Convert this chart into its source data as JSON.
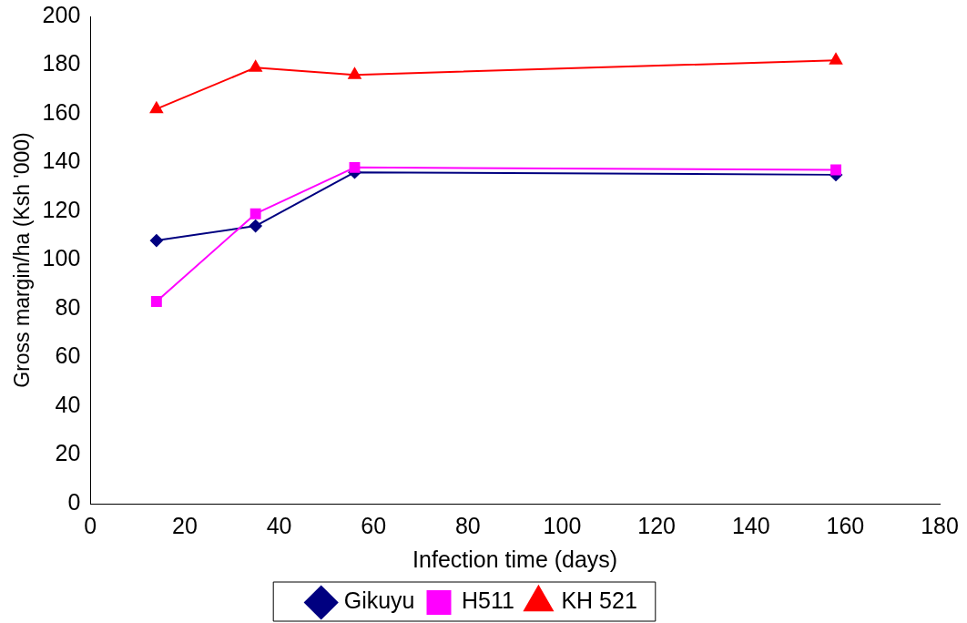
{
  "chart_data": {
    "type": "line",
    "xlabel": "Infection time (days)",
    "ylabel": "Gross margin/ha (Ksh '000)",
    "xlim": [
      0,
      180
    ],
    "xticks": [
      0,
      20,
      40,
      60,
      80,
      100,
      120,
      140,
      160,
      180
    ],
    "ylim": [
      0,
      200
    ],
    "yticks": [
      0,
      20,
      40,
      60,
      80,
      100,
      120,
      140,
      160,
      180,
      200
    ],
    "x": [
      14,
      35,
      56,
      158
    ],
    "grid": false,
    "legend": "bottom",
    "series": [
      {
        "name": "Gikuyu",
        "color": "#000080",
        "marker": "diamond",
        "values": [
          108,
          114,
          136,
          135
        ]
      },
      {
        "name": "H511",
        "color": "#ff00ff",
        "marker": "square",
        "values": [
          83,
          119,
          138,
          137
        ]
      },
      {
        "name": "KH 521",
        "color": "#ff0000",
        "marker": "triangle",
        "values": [
          162,
          179,
          176,
          182
        ]
      }
    ]
  }
}
